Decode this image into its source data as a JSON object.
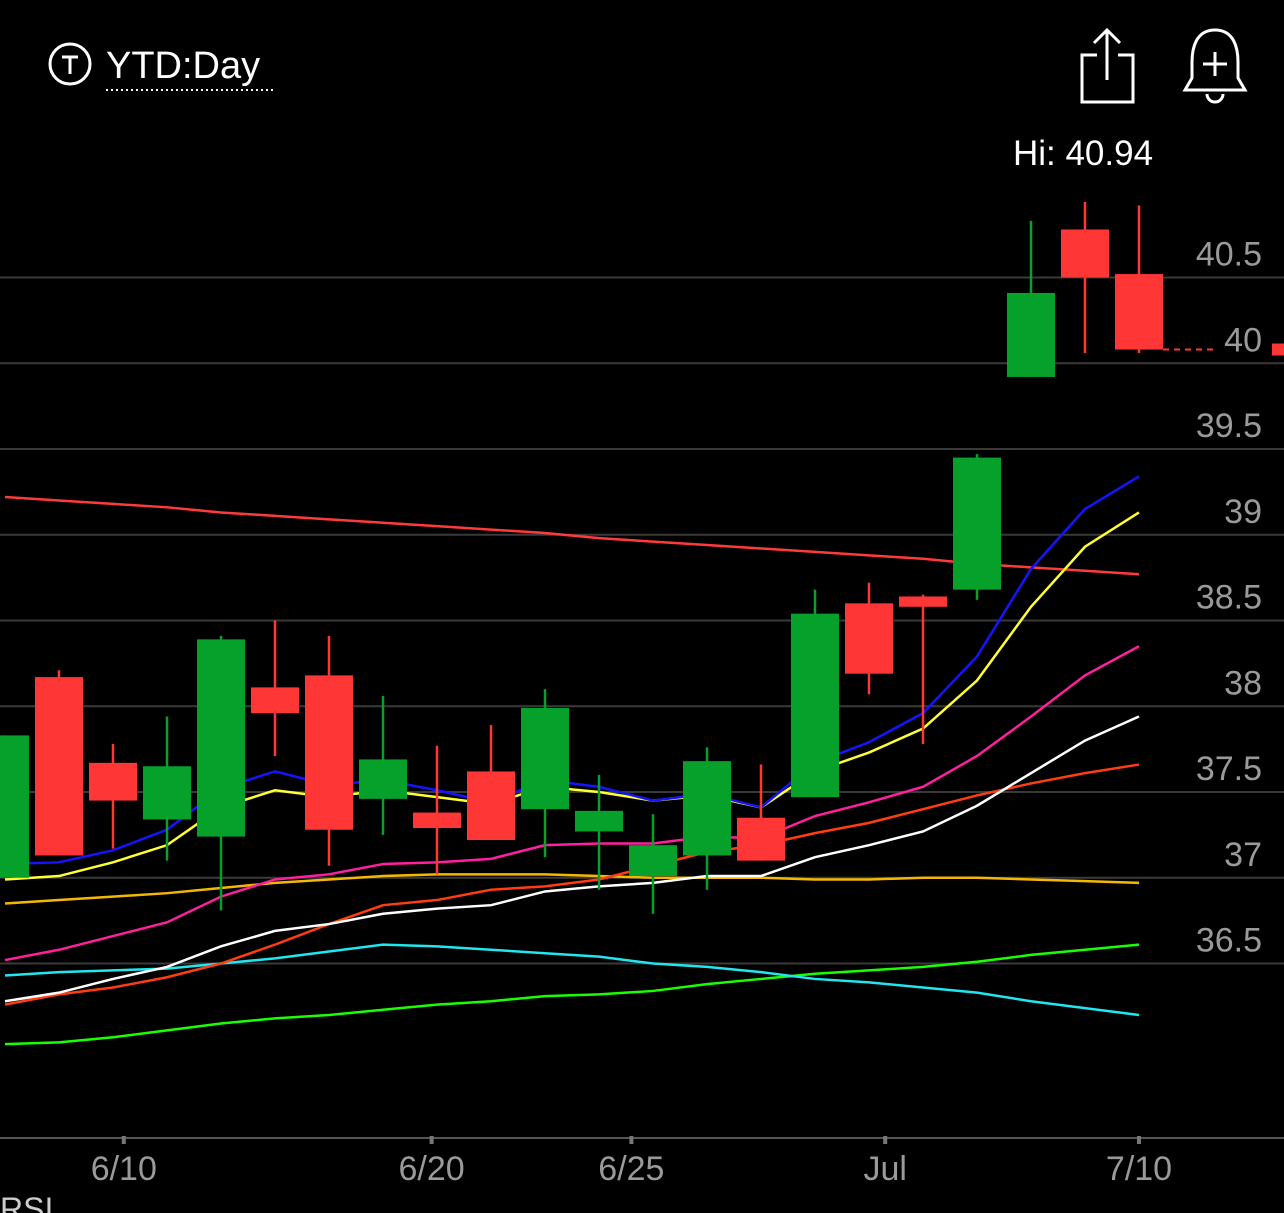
{
  "chart_data": {
    "type": "candlestick",
    "title": "YTD:Day",
    "annotation": "Hi: 40.94",
    "footer": "RSI",
    "categories": [
      null,
      null,
      null,
      null,
      null,
      null,
      null,
      null,
      null,
      null,
      null,
      null,
      null,
      null,
      null,
      null,
      null,
      null,
      null,
      null,
      null,
      null
    ],
    "open": [
      37.0,
      38.17,
      37.67,
      37.34,
      37.24,
      38.11,
      38.18,
      37.46,
      37.38,
      37.62,
      37.4,
      37.27,
      37.01,
      37.13,
      37.35,
      37.47,
      38.6,
      38.64,
      38.68,
      39.92,
      40.78,
      40.52
    ],
    "high": [
      37.83,
      38.21,
      37.78,
      37.94,
      38.41,
      38.5,
      38.41,
      38.06,
      37.77,
      37.89,
      38.1,
      37.6,
      37.37,
      37.76,
      37.66,
      38.68,
      38.72,
      38.65,
      39.47,
      40.83,
      40.94,
      40.92
    ],
    "low": [
      37.0,
      37.13,
      37.17,
      37.1,
      36.81,
      37.71,
      37.07,
      37.25,
      37.02,
      37.22,
      37.12,
      36.93,
      36.79,
      36.93,
      37.1,
      37.47,
      38.07,
      37.78,
      38.62,
      39.92,
      40.06,
      40.06
    ],
    "close": [
      37.83,
      37.13,
      37.45,
      37.65,
      38.39,
      37.96,
      37.28,
      37.69,
      37.29,
      37.22,
      37.99,
      37.39,
      37.19,
      37.68,
      37.1,
      38.54,
      38.19,
      38.58,
      39.45,
      40.41,
      40.5,
      40.08
    ],
    "up_color": "#05a12a",
    "down_color": "#ff3636",
    "series": [
      {
        "color": "#ff3a3a",
        "values": [
          39.22,
          39.2,
          39.18,
          39.16,
          39.13,
          39.11,
          39.09,
          39.07,
          39.05,
          39.03,
          39.01,
          38.98,
          38.96,
          38.94,
          38.92,
          38.9,
          38.88,
          38.86,
          38.83,
          38.81,
          38.79,
          38.77
        ]
      },
      {
        "color": "#19ff00",
        "values": [
          36.03,
          36.04,
          36.07,
          36.11,
          36.15,
          36.18,
          36.2,
          36.23,
          36.26,
          36.28,
          36.31,
          36.32,
          36.34,
          36.38,
          36.41,
          36.44,
          36.46,
          36.48,
          36.51,
          36.55,
          36.58,
          36.61
        ]
      },
      {
        "color": "#20e6ee",
        "values": [
          36.43,
          36.45,
          36.46,
          36.47,
          36.5,
          36.53,
          36.57,
          36.61,
          36.6,
          36.58,
          36.56,
          36.54,
          36.5,
          36.48,
          36.45,
          36.41,
          36.39,
          36.36,
          36.33,
          36.28,
          36.24,
          36.2
        ]
      },
      {
        "color": "#f5b800",
        "values": [
          36.85,
          36.87,
          36.89,
          36.91,
          36.94,
          36.97,
          36.99,
          37.01,
          37.02,
          37.02,
          37.02,
          37.01,
          37.0,
          37.0,
          37.0,
          36.99,
          36.99,
          37.0,
          37.0,
          36.99,
          36.98,
          36.97
        ]
      },
      {
        "color": "#ff3d0f",
        "values": [
          36.26,
          36.32,
          36.36,
          36.42,
          36.5,
          36.61,
          36.73,
          36.84,
          36.87,
          36.93,
          36.95,
          36.99,
          37.07,
          37.15,
          37.19,
          37.26,
          37.32,
          37.4,
          37.48,
          37.55,
          37.61,
          37.66
        ]
      },
      {
        "color": "#ffffff",
        "values": [
          36.28,
          36.33,
          36.41,
          36.48,
          36.6,
          36.69,
          36.73,
          36.79,
          36.82,
          36.84,
          36.92,
          36.95,
          36.97,
          37.01,
          37.01,
          37.12,
          37.19,
          37.27,
          37.42,
          37.61,
          37.8,
          37.94
        ]
      },
      {
        "color": "#ff1fa0",
        "values": [
          36.52,
          36.58,
          36.66,
          36.74,
          36.89,
          36.99,
          37.02,
          37.08,
          37.09,
          37.11,
          37.19,
          37.2,
          37.2,
          37.24,
          37.23,
          37.36,
          37.44,
          37.53,
          37.71,
          37.94,
          38.18,
          38.35
        ]
      },
      {
        "color": "#ffff33",
        "values": [
          36.99,
          37.01,
          37.09,
          37.19,
          37.41,
          37.51,
          37.47,
          37.51,
          37.47,
          37.43,
          37.53,
          37.5,
          37.45,
          37.48,
          37.41,
          37.62,
          37.73,
          37.87,
          38.15,
          38.58,
          38.93,
          39.13
        ]
      },
      {
        "color": "#1414ff",
        "values": [
          37.08,
          37.09,
          37.16,
          37.28,
          37.52,
          37.62,
          37.54,
          37.57,
          37.51,
          37.44,
          37.57,
          37.53,
          37.45,
          37.49,
          37.41,
          37.67,
          37.79,
          37.96,
          38.29,
          38.8,
          39.15,
          39.34
        ]
      }
    ],
    "ylim": [
      35.5,
      41.5
    ],
    "yticks": [
      36.5,
      37,
      37.5,
      38,
      38.5,
      39,
      39.5,
      40,
      40.5
    ],
    "xticks": [
      {
        "value": 2.2,
        "label": "6/10"
      },
      {
        "value": 7.9,
        "label": "6/20"
      },
      {
        "value": 11.6,
        "label": "6/25"
      },
      {
        "value": 16.3,
        "label": "Jul"
      },
      {
        "value": 21,
        "label": "7/10"
      }
    ],
    "grid": true
  }
}
